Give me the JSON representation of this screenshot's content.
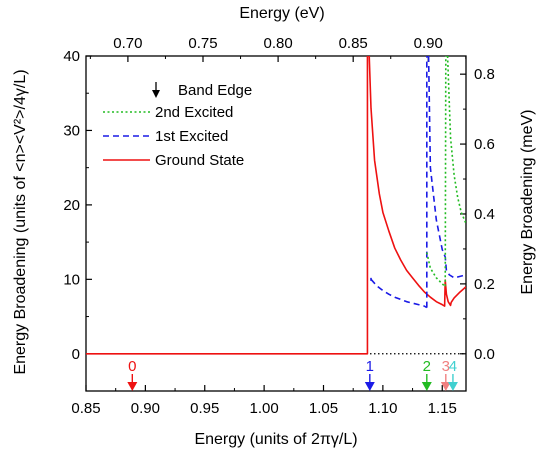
{
  "chart_data": {
    "type": "line",
    "x_bottom": {
      "label": "Energy (units of 2πγ/L)",
      "range": [
        0.85,
        1.17
      ],
      "ticks": [
        "0.85",
        "0.90",
        "0.95",
        "1.00",
        "1.05",
        "1.10",
        "1.15"
      ],
      "tick_values": [
        0.85,
        0.9,
        0.95,
        1.0,
        1.05,
        1.1,
        1.15
      ]
    },
    "x_top": {
      "label": "Energy (eV)",
      "ticks": [
        "0.70",
        "0.75",
        "0.80",
        "0.85",
        "0.90"
      ],
      "tick_values": [
        0.7,
        0.75,
        0.8,
        0.85,
        0.9
      ],
      "ev_per_unit": 0.7907
    },
    "y_left": {
      "label": "Energy Broadening (units of <n><V²>/4γ/L)",
      "range": [
        -5,
        40
      ],
      "ticks": [
        "0",
        "10",
        "20",
        "30",
        "40"
      ],
      "tick_values": [
        0,
        10,
        20,
        30,
        40
      ]
    },
    "y_right": {
      "label": "Energy Broadening (meV)",
      "ticks": [
        "0.0",
        "0.2",
        "0.4",
        "0.6",
        "0.8"
      ],
      "tick_values": [
        0.0,
        0.2,
        0.4,
        0.6,
        0.8
      ],
      "mev_per_unit": 0.0213
    },
    "legend": {
      "position": "top-left",
      "marker_label": "Band Edge",
      "entries": [
        {
          "name": "2nd Excited",
          "color": "#22bb22",
          "dash": "dotted"
        },
        {
          "name": "1st Excited",
          "color": "#1a1ae6",
          "dash": "dashed"
        },
        {
          "name": "Ground State",
          "color": "#ee1111",
          "dash": "solid"
        }
      ]
    },
    "series": [
      {
        "name": "Ground State",
        "color": "#ee1111",
        "dash": "solid",
        "segments": [
          [
            [
              0.85,
              0
            ],
            [
              1.087,
              0
            ],
            [
              1.087,
              40
            ]
          ],
          [
            [
              1.0885,
              40
            ],
            [
              1.09,
              33
            ],
            [
              1.093,
              26
            ],
            [
              1.097,
              21.5
            ],
            [
              1.1,
              19
            ],
            [
              1.105,
              16.5
            ],
            [
              1.11,
              14.2
            ],
            [
              1.115,
              12.6
            ],
            [
              1.12,
              11.2
            ],
            [
              1.125,
              10.2
            ],
            [
              1.13,
              9.2
            ],
            [
              1.135,
              8.3
            ],
            [
              1.14,
              7.6
            ],
            [
              1.145,
              7.0
            ],
            [
              1.15,
              6.6
            ],
            [
              1.152,
              6.4
            ],
            [
              1.1525,
              9.9
            ],
            [
              1.1535,
              8.0
            ],
            [
              1.155,
              7.0
            ],
            [
              1.157,
              6.5
            ],
            [
              1.1575,
              6.9
            ],
            [
              1.16,
              7.5
            ],
            [
              1.165,
              8.3
            ],
            [
              1.17,
              9.0
            ]
          ]
        ]
      },
      {
        "name": "1st Excited",
        "color": "#1a1ae6",
        "dash": "dashed",
        "segments": [
          [
            [
              1.09,
              10.2
            ],
            [
              1.09,
              9.8
            ]
          ],
          [
            [
              1.09,
              10.0
            ],
            [
              1.095,
              9.1
            ],
            [
              1.1,
              8.5
            ],
            [
              1.105,
              8.0
            ],
            [
              1.11,
              7.6
            ],
            [
              1.115,
              7.3
            ],
            [
              1.12,
              7.0
            ],
            [
              1.125,
              6.8
            ],
            [
              1.13,
              6.6
            ],
            [
              1.135,
              6.4
            ],
            [
              1.136,
              6.3
            ],
            [
              1.137,
              6.2
            ]
          ],
          [
            [
              1.137,
              6.2
            ],
            [
              1.137,
              40
            ]
          ],
          [
            [
              1.1385,
              40
            ],
            [
              1.14,
              25
            ],
            [
              1.145,
              18
            ],
            [
              1.15,
              14
            ],
            [
              1.1525,
              13
            ],
            [
              1.1535,
              11.2
            ],
            [
              1.156,
              10.6
            ],
            [
              1.16,
              10.2
            ],
            [
              1.165,
              10.4
            ],
            [
              1.17,
              10.6
            ]
          ]
        ]
      },
      {
        "name": "2nd Excited",
        "color": "#22bb22",
        "dash": "dotted",
        "segments": [
          [
            [
              1.137,
              13.6
            ],
            [
              1.14,
              11.5
            ],
            [
              1.145,
              10.2
            ],
            [
              1.15,
              9.4
            ],
            [
              1.1525,
              9.0
            ],
            [
              1.153,
              40
            ]
          ],
          [
            [
              1.1545,
              40
            ],
            [
              1.157,
              29
            ],
            [
              1.16,
              24
            ],
            [
              1.163,
              21
            ],
            [
              1.166,
              19
            ],
            [
              1.17,
              17.5
            ]
          ]
        ]
      }
    ],
    "band_edges": [
      {
        "label": "0",
        "x": 0.889,
        "color": "#ee1111"
      },
      {
        "label": "1",
        "x": 1.089,
        "color": "#1a1ae6"
      },
      {
        "label": "2",
        "x": 1.137,
        "color": "#22bb22"
      },
      {
        "label": "3",
        "x": 1.153,
        "color": "#f08080"
      },
      {
        "label": "4",
        "x": 1.159,
        "color": "#40d0d0"
      }
    ],
    "zero_line": {
      "y": 0,
      "style": "dotted"
    },
    "grid": false
  }
}
